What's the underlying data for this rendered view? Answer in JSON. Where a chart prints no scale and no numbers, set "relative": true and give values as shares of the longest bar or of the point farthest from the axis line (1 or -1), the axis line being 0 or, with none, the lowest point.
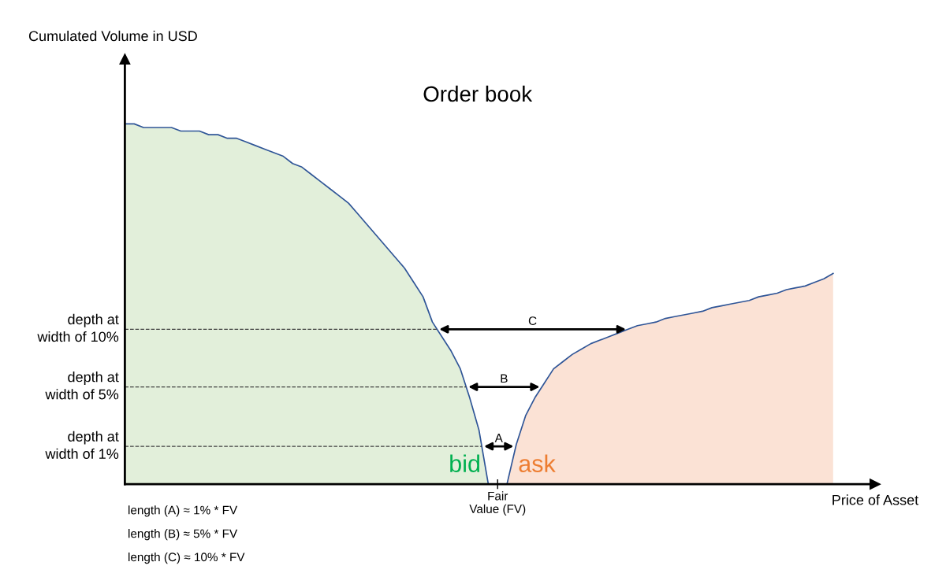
{
  "chart_data": {
    "type": "area",
    "relative": true,
    "title": "Order book",
    "xlabel": "Price of Asset",
    "categories": [
      null,
      null,
      null,
      null,
      null,
      null,
      null,
      null,
      null,
      null,
      null,
      null,
      null,
      null,
      null,
      null,
      null,
      null,
      null,
      null,
      null,
      null,
      null,
      null,
      null,
      null,
      null,
      null,
      null,
      null,
      null,
      null,
      null,
      null,
      null,
      null,
      null,
      null,
      null,
      null,
      null,
      null,
      null,
      null,
      null,
      null,
      null,
      null,
      null,
      null,
      null,
      null,
      null,
      null,
      null,
      null,
      null,
      null,
      null,
      null,
      null,
      null,
      null,
      null,
      null,
      null,
      null,
      null,
      null,
      null,
      null,
      null,
      null,
      null,
      null,
      null,
      null
    ],
    "series": [
      {
        "name": "bid",
        "color": "#e2efda",
        "values": [
          1.0,
          1.0,
          0.99,
          0.99,
          0.99,
          0.99,
          0.98,
          0.98,
          0.98,
          0.97,
          0.97,
          0.96,
          0.96,
          0.95,
          0.94,
          0.93,
          0.92,
          0.91,
          0.89,
          0.88,
          0.86,
          0.84,
          0.82,
          0.8,
          0.78,
          0.75,
          0.72,
          0.69,
          0.66,
          0.63,
          0.6,
          0.56,
          0.52,
          0.45,
          0.41,
          0.37,
          0.32,
          0.24,
          0.15,
          0.0,
          null,
          null,
          null,
          null,
          null,
          null,
          null,
          null,
          null,
          null,
          null,
          null,
          null,
          null,
          null,
          null,
          null,
          null,
          null,
          null,
          null,
          null,
          null,
          null,
          null,
          null,
          null,
          null,
          null,
          null,
          null,
          null,
          null,
          null,
          null,
          null,
          null
        ]
      },
      {
        "name": "ask",
        "color": "#fbe2d5",
        "values": [
          null,
          null,
          null,
          null,
          null,
          null,
          null,
          null,
          null,
          null,
          null,
          null,
          null,
          null,
          null,
          null,
          null,
          null,
          null,
          null,
          null,
          null,
          null,
          null,
          null,
          null,
          null,
          null,
          null,
          null,
          null,
          null,
          null,
          null,
          null,
          null,
          null,
          null,
          null,
          null,
          null,
          0.0,
          0.11,
          0.19,
          0.24,
          0.28,
          0.32,
          0.34,
          0.36,
          0.375,
          0.39,
          0.4,
          0.41,
          0.42,
          0.43,
          0.44,
          0.445,
          0.45,
          0.46,
          0.465,
          0.47,
          0.475,
          0.48,
          0.49,
          0.495,
          0.5,
          0.505,
          0.51,
          0.52,
          0.525,
          0.53,
          0.54,
          0.545,
          0.55,
          0.56,
          0.57,
          0.585
        ]
      }
    ],
    "ref_lines": [
      {
        "axis": "y",
        "value": 0.43,
        "label": "depth at\nwidth of 10%",
        "line_style": "dashed"
      },
      {
        "axis": "y",
        "value": 0.27,
        "label": "depth at\nwidth of 5%",
        "line_style": "dashed"
      },
      {
        "axis": "y",
        "value": 0.105,
        "label": "depth at\nwidth of 1%",
        "line_style": "dashed"
      }
    ],
    "annotations": [
      "C",
      "B",
      "A",
      "Fair\nValue (FV)",
      "Cumulated Volume in USD",
      "length (A) ≈ 1% * FV",
      "length (B) ≈ 5% * FV",
      "length (C) ≈ 10% * FV"
    ],
    "legend": false
  }
}
